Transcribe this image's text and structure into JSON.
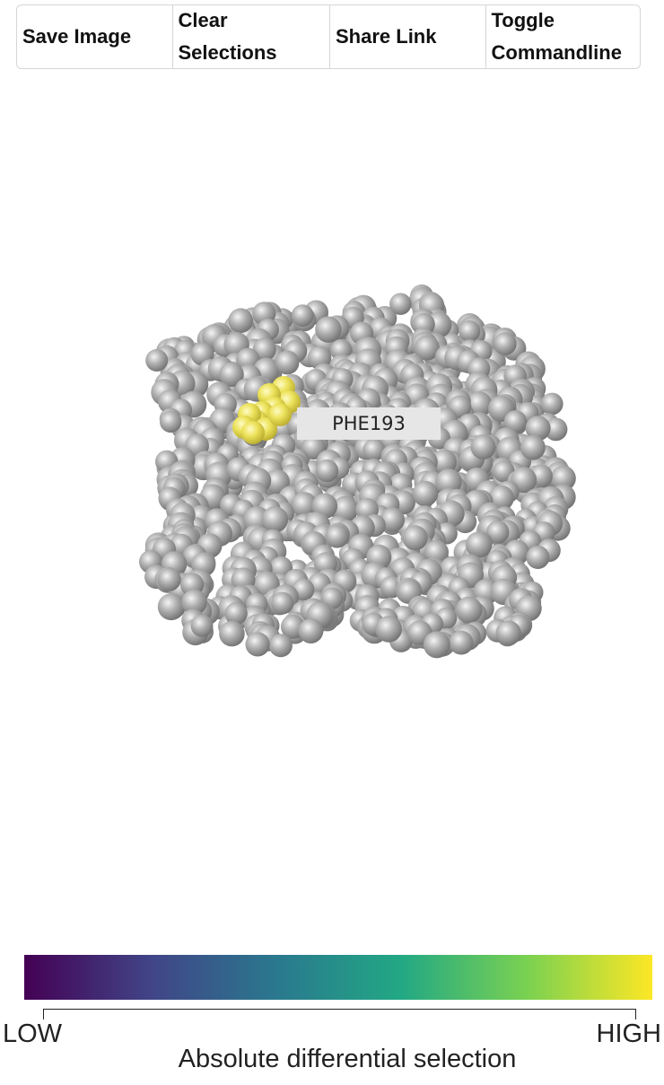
{
  "toolbar": {
    "save_label": "Save Image",
    "clear_label": "Clear\nSelections",
    "share_label": "Share Link",
    "toggle_label": "Toggle\nCommandline"
  },
  "viewer": {
    "hover_label": "PHE193",
    "atom_color": "#a8a8a8",
    "highlight_color": "#ece25a"
  },
  "legend": {
    "low_label": "LOW",
    "high_label": "HIGH",
    "title": "Absolute differential selection",
    "gradient_colors": [
      "#440154",
      "#414487",
      "#2a788e",
      "#22a884",
      "#7ad151",
      "#fde725"
    ]
  }
}
